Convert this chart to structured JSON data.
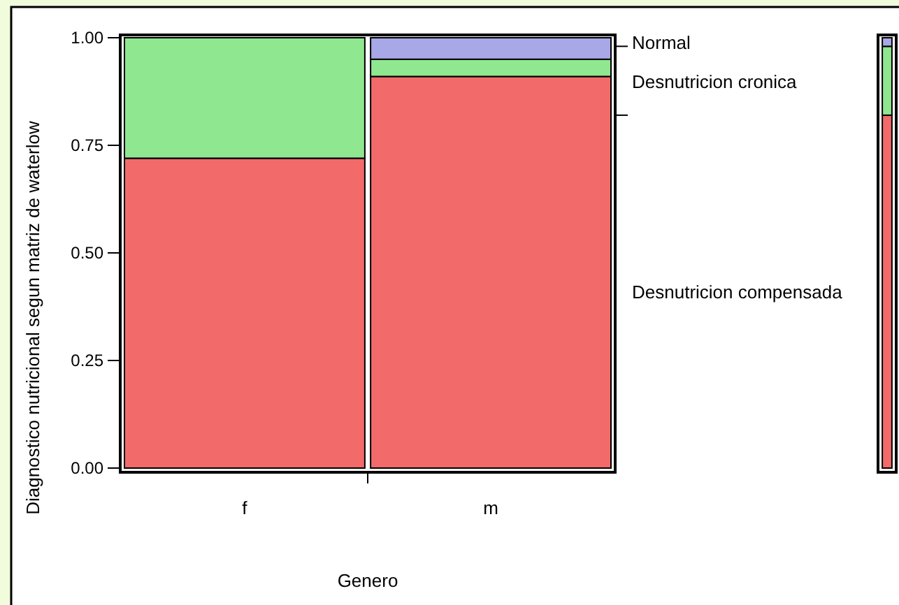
{
  "chart_data": [
    {
      "type": "bar",
      "stacked": true,
      "categories": [
        "f",
        "m"
      ],
      "xlabel": "Genero",
      "ylabel": "Diagnostico nutricional segun matriz de waterlow",
      "ylim": [
        0,
        1
      ],
      "yticks": [
        {
          "value": 0,
          "label": "0.00"
        },
        {
          "value": 0.25,
          "label": "0.25"
        },
        {
          "value": 0.5,
          "label": "0.50"
        },
        {
          "value": 0.75,
          "label": "0.75"
        },
        {
          "value": 1,
          "label": "1.00"
        }
      ],
      "series": [
        {
          "name": "Desnutricion compensada",
          "color": "#f26a6a",
          "values": [
            0.72,
            0.91
          ]
        },
        {
          "name": "Desnutricion cronica",
          "color": "#8fe88f",
          "values": [
            0.28,
            0.04
          ]
        },
        {
          "name": "Normal",
          "color": "#a8a8e6",
          "values": [
            0,
            0.05
          ]
        }
      ]
    },
    {
      "type": "bar",
      "stacked": true,
      "categories": [
        null
      ],
      "ylim": [
        0,
        1
      ],
      "series": [
        {
          "color": "#f26a6a",
          "values": [
            0.82
          ]
        },
        {
          "color": "#8fe88f",
          "values": [
            0.16
          ]
        },
        {
          "color": "#a8a8e6",
          "values": [
            0.02
          ]
        }
      ]
    }
  ]
}
